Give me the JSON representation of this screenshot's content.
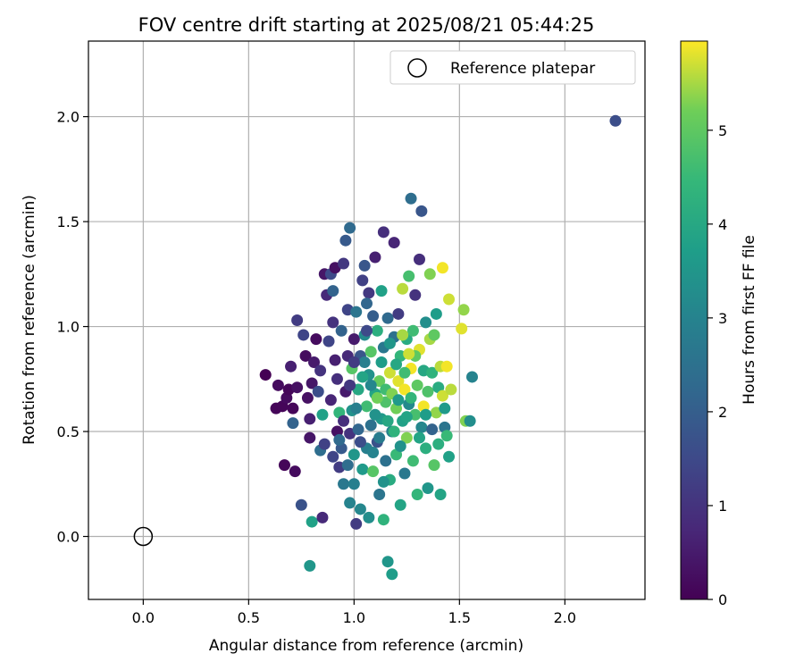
{
  "chart_data": {
    "type": "scatter",
    "title": "FOV centre drift starting at 2025/08/21 05:44:25",
    "xlabel": "Angular distance from reference (arcmin)",
    "ylabel": "Rotation from reference (arcmin)",
    "xlim": [
      -0.26,
      2.38
    ],
    "ylim": [
      -0.3,
      2.36
    ],
    "x_ticks": [
      "0.0",
      "0.5",
      "1.0",
      "1.5",
      "2.0"
    ],
    "y_ticks": [
      "0.0",
      "0.5",
      "1.0",
      "1.5",
      "2.0"
    ],
    "grid": true,
    "legend": {
      "position": "top-right",
      "entries": [
        "Reference platepar"
      ]
    },
    "reference_point": {
      "x": 0.0,
      "y": 0.0
    },
    "colorbar": {
      "label": "Hours from first FF file",
      "range": [
        0,
        5.95
      ],
      "ticks": [
        "0",
        "1",
        "2",
        "3",
        "4",
        "5"
      ],
      "colormap": "viridis"
    },
    "points": [
      [
        2.24,
        1.98,
        1.6
      ],
      [
        0.58,
        0.77,
        0.0
      ],
      [
        0.63,
        0.61,
        0.1
      ],
      [
        0.64,
        0.72,
        0.2
      ],
      [
        0.66,
        0.62,
        0.1
      ],
      [
        0.67,
        0.34,
        0.1
      ],
      [
        0.68,
        0.66,
        0.2
      ],
      [
        0.69,
        0.7,
        0.1
      ],
      [
        0.71,
        0.61,
        0.1
      ],
      [
        0.72,
        0.31,
        0.2
      ],
      [
        0.73,
        0.71,
        0.3
      ],
      [
        0.7,
        0.81,
        0.6
      ],
      [
        0.73,
        1.03,
        1.2
      ],
      [
        0.71,
        0.54,
        2.1
      ],
      [
        0.75,
        0.15,
        1.7
      ],
      [
        0.76,
        0.96,
        1.4
      ],
      [
        0.77,
        0.86,
        0.2
      ],
      [
        0.78,
        0.66,
        0.3
      ],
      [
        0.79,
        0.47,
        0.4
      ],
      [
        0.79,
        0.56,
        0.6
      ],
      [
        0.8,
        0.07,
        3.8
      ],
      [
        0.79,
        -0.14,
        3.5
      ],
      [
        0.8,
        0.73,
        0.4
      ],
      [
        0.81,
        0.83,
        0.5
      ],
      [
        0.82,
        0.94,
        0.2
      ],
      [
        0.83,
        0.69,
        1.6
      ],
      [
        0.84,
        0.41,
        2.4
      ],
      [
        0.84,
        0.79,
        1.0
      ],
      [
        0.85,
        0.09,
        0.8
      ],
      [
        0.86,
        0.44,
        1.3
      ],
      [
        0.85,
        0.58,
        3.8
      ],
      [
        0.86,
        1.25,
        0.4
      ],
      [
        0.87,
        1.15,
        0.8
      ],
      [
        0.88,
        0.93,
        1.4
      ],
      [
        0.89,
        0.65,
        0.7
      ],
      [
        0.89,
        1.25,
        1.5
      ],
      [
        0.9,
        1.17,
        2.1
      ],
      [
        0.9,
        1.02,
        1.0
      ],
      [
        0.91,
        1.28,
        0.3
      ],
      [
        0.91,
        0.84,
        0.6
      ],
      [
        0.92,
        0.5,
        0.3
      ],
      [
        0.92,
        0.75,
        0.9
      ],
      [
        0.93,
        0.59,
        4.4
      ],
      [
        0.93,
        0.33,
        1.2
      ],
      [
        0.94,
        0.42,
        1.9
      ],
      [
        0.94,
        0.98,
        2.1
      ],
      [
        0.95,
        1.3,
        1.1
      ],
      [
        0.95,
        0.25,
        2.7
      ],
      [
        0.96,
        1.41,
        1.9
      ],
      [
        0.96,
        0.69,
        0.5
      ],
      [
        0.97,
        0.86,
        0.8
      ],
      [
        0.97,
        1.08,
        1.4
      ],
      [
        0.98,
        0.49,
        1.0
      ],
      [
        0.98,
        1.47,
        2.3
      ],
      [
        0.98,
        0.16,
        3.0
      ],
      [
        0.99,
        0.8,
        4.9
      ],
      [
        0.99,
        0.6,
        3.4
      ],
      [
        1.0,
        0.94,
        0.5
      ],
      [
        1.0,
        0.39,
        3.5
      ],
      [
        1.0,
        0.25,
        2.9
      ],
      [
        1.01,
        1.07,
        2.6
      ],
      [
        1.01,
        0.06,
        1.2
      ],
      [
        1.02,
        0.7,
        4.0
      ],
      [
        1.02,
        0.51,
        2.2
      ],
      [
        1.03,
        0.86,
        1.8
      ],
      [
        1.03,
        0.13,
        3.1
      ],
      [
        1.04,
        1.22,
        1.3
      ],
      [
        1.04,
        0.32,
        3.6
      ],
      [
        1.05,
        0.96,
        3.2
      ],
      [
        1.05,
        1.29,
        1.8
      ],
      [
        1.06,
        0.62,
        4.6
      ],
      [
        1.06,
        0.42,
        2.9
      ],
      [
        1.07,
        0.77,
        3.4
      ],
      [
        1.07,
        1.16,
        1.1
      ],
      [
        1.07,
        0.09,
        3.3
      ],
      [
        1.08,
        0.53,
        2.5
      ],
      [
        1.08,
        0.88,
        4.9
      ],
      [
        1.09,
        1.05,
        2.0
      ],
      [
        1.09,
        0.31,
        4.9
      ],
      [
        1.1,
        0.68,
        3.9
      ],
      [
        1.1,
        1.33,
        0.6
      ],
      [
        1.11,
        0.45,
        1.7
      ],
      [
        1.11,
        0.98,
        4.2
      ],
      [
        1.12,
        0.2,
        2.6
      ],
      [
        1.12,
        0.74,
        5.1
      ],
      [
        1.13,
        0.56,
        3.6
      ],
      [
        1.13,
        1.17,
        3.8
      ],
      [
        1.14,
        0.08,
        4.3
      ],
      [
        1.14,
        0.9,
        2.7
      ],
      [
        1.14,
        1.45,
        0.9
      ],
      [
        1.15,
        0.36,
        2.5
      ],
      [
        1.15,
        0.64,
        4.8
      ],
      [
        1.16,
        1.04,
        2.3
      ],
      [
        1.16,
        -0.12,
        3.5
      ],
      [
        1.17,
        0.78,
        5.7
      ],
      [
        1.17,
        0.27,
        4.1
      ],
      [
        1.18,
        -0.18,
        3.7
      ],
      [
        1.18,
        0.5,
        3.0
      ],
      [
        1.19,
        0.95,
        2.5
      ],
      [
        1.19,
        1.4,
        0.7
      ],
      [
        1.2,
        0.61,
        5.2
      ],
      [
        1.2,
        0.39,
        4.5
      ],
      [
        1.21,
        0.74,
        5.8
      ],
      [
        1.21,
        1.06,
        1.2
      ],
      [
        1.22,
        0.15,
        3.9
      ],
      [
        1.22,
        0.86,
        4.4
      ],
      [
        1.23,
        0.55,
        3.8
      ],
      [
        1.23,
        1.18,
        5.6
      ],
      [
        1.24,
        0.7,
        5.9
      ],
      [
        1.24,
        0.3,
        2.7
      ],
      [
        1.25,
        0.94,
        4.1
      ],
      [
        1.25,
        0.47,
        5.3
      ],
      [
        1.26,
        1.24,
        4.7
      ],
      [
        1.26,
        0.63,
        3.2
      ],
      [
        1.27,
        0.8,
        5.9
      ],
      [
        1.27,
        1.61,
        2.4
      ],
      [
        1.28,
        0.36,
        4.6
      ],
      [
        1.28,
        0.98,
        4.6
      ],
      [
        1.29,
        0.58,
        4.7
      ],
      [
        1.29,
        1.15,
        1.0
      ],
      [
        1.3,
        0.72,
        5.0
      ],
      [
        1.3,
        0.2,
        4.4
      ],
      [
        1.31,
        0.89,
        5.8
      ],
      [
        1.31,
        1.32,
        0.9
      ],
      [
        1.32,
        0.52,
        3.1
      ],
      [
        1.32,
        1.55,
        1.8
      ],
      [
        1.33,
        0.62,
        5.9
      ],
      [
        1.33,
        0.79,
        4.0
      ],
      [
        1.34,
        0.42,
        4.2
      ],
      [
        1.34,
        1.02,
        3.3
      ],
      [
        1.35,
        0.23,
        3.5
      ],
      [
        1.35,
        0.69,
        4.8
      ],
      [
        1.36,
        0.94,
        5.5
      ],
      [
        1.36,
        1.25,
        5.3
      ],
      [
        1.37,
        0.51,
        2.1
      ],
      [
        1.37,
        0.78,
        4.3
      ],
      [
        1.38,
        0.34,
        4.9
      ],
      [
        1.38,
        0.96,
        5.0
      ],
      [
        1.39,
        0.59,
        5.4
      ],
      [
        1.39,
        1.06,
        3.7
      ],
      [
        1.4,
        0.71,
        4.1
      ],
      [
        1.4,
        0.44,
        4.2
      ],
      [
        1.41,
        0.81,
        5.6
      ],
      [
        1.41,
        0.2,
        3.9
      ],
      [
        1.42,
        1.28,
        5.9
      ],
      [
        1.42,
        0.67,
        5.7
      ],
      [
        1.43,
        0.52,
        2.6
      ],
      [
        1.43,
        0.61,
        3.6
      ],
      [
        1.44,
        0.48,
        4.5
      ],
      [
        1.44,
        0.81,
        5.9
      ],
      [
        1.45,
        1.13,
        5.7
      ],
      [
        1.45,
        0.38,
        3.8
      ],
      [
        1.46,
        0.7,
        5.6
      ],
      [
        1.52,
        1.08,
        5.4
      ],
      [
        1.51,
        0.99,
        5.8
      ],
      [
        1.53,
        0.55,
        5.3
      ],
      [
        1.55,
        0.55,
        3.3
      ],
      [
        1.56,
        0.76,
        3.0
      ],
      [
        1.05,
        0.83,
        2.9
      ],
      [
        1.1,
        0.58,
        3.4
      ],
      [
        1.15,
        0.7,
        4.6
      ],
      [
        1.2,
        0.82,
        4.0
      ],
      [
        1.25,
        0.57,
        3.9
      ],
      [
        1.08,
        0.72,
        3.1
      ],
      [
        1.12,
        0.47,
        2.8
      ],
      [
        1.17,
        0.92,
        3.5
      ],
      [
        1.22,
        0.43,
        3.4
      ],
      [
        1.27,
        0.66,
        4.4
      ],
      [
        1.03,
        0.45,
        1.6
      ],
      [
        1.06,
        0.98,
        1.5
      ],
      [
        1.13,
        0.83,
        3.7
      ],
      [
        1.18,
        0.68,
        5.3
      ],
      [
        1.23,
        0.96,
        5.5
      ],
      [
        0.95,
        0.55,
        0.9
      ],
      [
        0.98,
        0.72,
        1.1
      ],
      [
        1.01,
        0.61,
        2.9
      ],
      [
        1.04,
        0.76,
        3.9
      ],
      [
        1.09,
        0.4,
        3.0
      ],
      [
        1.14,
        0.26,
        3.4
      ],
      [
        1.19,
        0.5,
        4.3
      ],
      [
        1.24,
        0.78,
        4.6
      ],
      [
        1.29,
        0.86,
        5.0
      ],
      [
        1.34,
        0.58,
        3.7
      ],
      [
        0.9,
        0.38,
        1.4
      ],
      [
        0.93,
        0.46,
        2.3
      ],
      [
        0.97,
        0.34,
        2.4
      ],
      [
        1.0,
        0.83,
        1.2
      ],
      [
        1.06,
        1.11,
        2.2
      ],
      [
        1.11,
        0.66,
        5.2
      ],
      [
        1.16,
        0.55,
        4.0
      ],
      [
        1.21,
        0.65,
        3.6
      ],
      [
        1.26,
        0.87,
        5.7
      ],
      [
        1.31,
        0.47,
        3.9
      ]
    ]
  }
}
